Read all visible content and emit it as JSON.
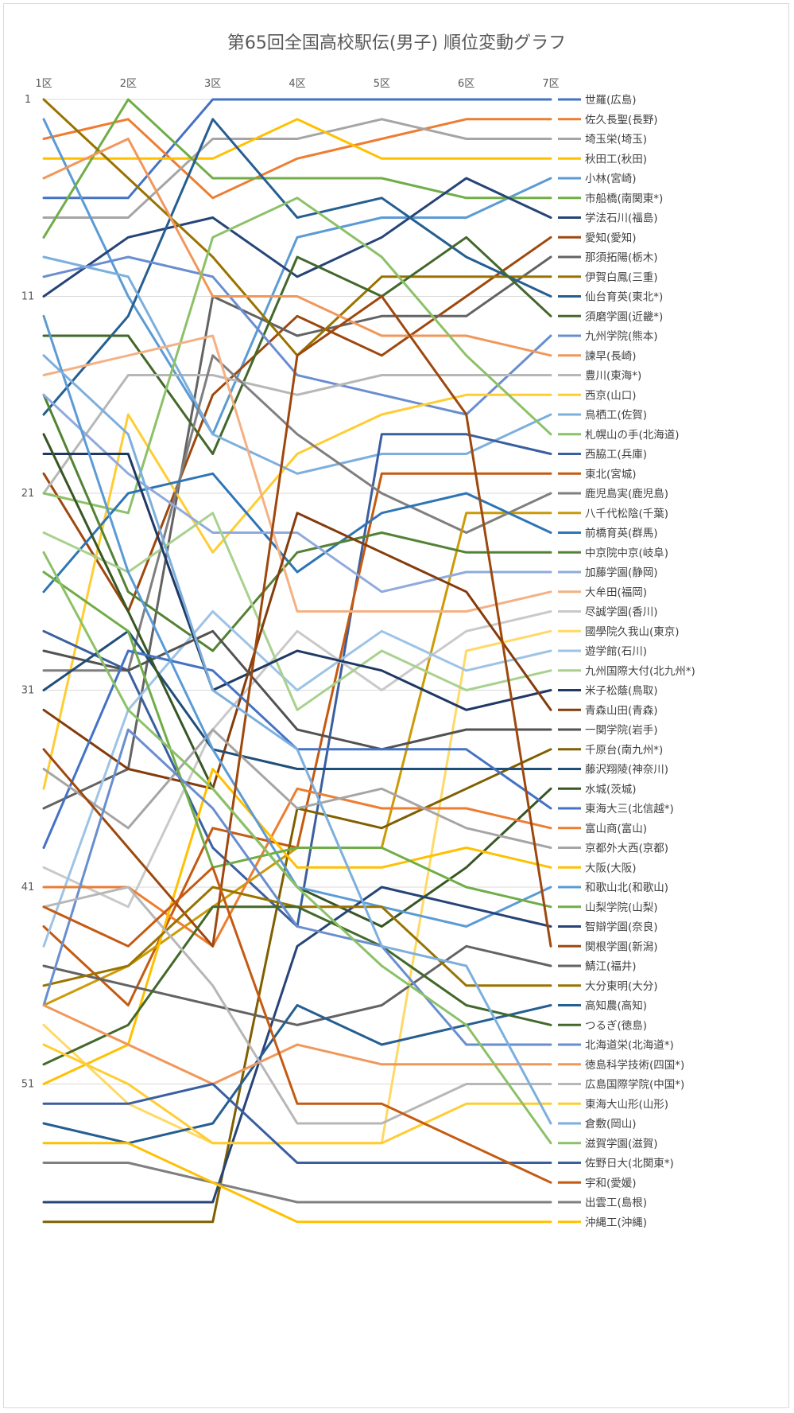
{
  "chart_data": {
    "type": "line",
    "title": "第65回全国高校駅伝(男子) 順位変動グラフ",
    "x_categories": [
      "1区",
      "2区",
      "3区",
      "4区",
      "5区",
      "6区",
      "7区"
    ],
    "y_ticks": [
      1,
      11,
      21,
      31,
      41,
      51
    ],
    "ylim": [
      1,
      58
    ],
    "y_inverted": true,
    "grid": "horizontal",
    "legend_position": "right",
    "series": [
      {
        "name": "世羅(広島)",
        "color": "#4472c4",
        "values": [
          6,
          6,
          1,
          1,
          1,
          1,
          1
        ]
      },
      {
        "name": "佐久長聖(長野)",
        "color": "#ed7d31",
        "values": [
          3,
          2,
          6,
          4,
          3,
          2,
          2
        ]
      },
      {
        "name": "埼玉栄(埼玉)",
        "color": "#a5a5a5",
        "values": [
          7,
          7,
          3,
          3,
          2,
          3,
          3
        ]
      },
      {
        "name": "秋田工(秋田)",
        "color": "#ffc000",
        "values": [
          4,
          4,
          4,
          2,
          4,
          4,
          4
        ]
      },
      {
        "name": "小林(宮崎)",
        "color": "#5b9bd5",
        "values": [
          2,
          11,
          18,
          8,
          7,
          7,
          5
        ]
      },
      {
        "name": "市船橋(南関東*)",
        "color": "#70ad47",
        "values": [
          8,
          1,
          5,
          5,
          5,
          6,
          6
        ]
      },
      {
        "name": "学法石川(福島)",
        "color": "#264478",
        "values": [
          11,
          8,
          7,
          10,
          8,
          5,
          7
        ]
      },
      {
        "name": "愛知(愛知)",
        "color": "#9e480e",
        "values": [
          20,
          27,
          16,
          12,
          14,
          11,
          8
        ]
      },
      {
        "name": "那須拓陽(栃木)",
        "color": "#636363",
        "values": [
          37,
          35,
          11,
          13,
          12,
          12,
          9
        ]
      },
      {
        "name": "伊賀白鳳(三重)",
        "color": "#997300",
        "values": [
          1,
          5,
          9,
          14,
          10,
          10,
          10
        ]
      },
      {
        "name": "仙台育英(東北*)",
        "color": "#255e91",
        "values": [
          17,
          12,
          2,
          7,
          6,
          9,
          11
        ]
      },
      {
        "name": "須磨学園(近畿*)",
        "color": "#43682b",
        "values": [
          13,
          13,
          19,
          9,
          11,
          8,
          12
        ]
      },
      {
        "name": "九州学院(熊本)",
        "color": "#698ed0",
        "values": [
          10,
          9,
          10,
          15,
          16,
          17,
          13
        ]
      },
      {
        "name": "諫早(長崎)",
        "color": "#f1975a",
        "values": [
          5,
          3,
          11,
          11,
          13,
          13,
          14
        ]
      },
      {
        "name": "豊川(東海*)",
        "color": "#b7b7b7",
        "values": [
          21,
          15,
          15,
          16,
          15,
          15,
          15
        ]
      },
      {
        "name": "西京(山口)",
        "color": "#ffcd33",
        "values": [
          36,
          17,
          24,
          19,
          17,
          16,
          16
        ]
      },
      {
        "name": "鳥栖工(佐賀)",
        "color": "#7cafdd",
        "values": [
          9,
          10,
          18,
          20,
          19,
          19,
          17
        ]
      },
      {
        "name": "札幌山の手(北海道)",
        "color": "#8cc168",
        "values": [
          21,
          22,
          8,
          6,
          9,
          14,
          18
        ]
      },
      {
        "name": "西脇工(兵庫)",
        "color": "#3a5fa0",
        "values": [
          28,
          30,
          39,
          43,
          18,
          18,
          19
        ]
      },
      {
        "name": "東北(宮城)",
        "color": "#c55a11",
        "values": [
          43,
          47,
          38,
          39,
          20,
          20,
          20
        ]
      },
      {
        "name": "鹿児島実(鹿児島)",
        "color": "#7f7f7f",
        "values": [
          30,
          30,
          14,
          18,
          21,
          23,
          21
        ]
      },
      {
        "name": "八千代松陰(千葉)",
        "color": "#cc9a06",
        "values": [
          47,
          45,
          42,
          39,
          39,
          22,
          22
        ]
      },
      {
        "name": "前橋育英(群馬)",
        "color": "#2e75b6",
        "values": [
          26,
          21,
          20,
          25,
          22,
          21,
          23
        ]
      },
      {
        "name": "中京院中京(岐阜)",
        "color": "#548235",
        "values": [
          16,
          26,
          29,
          24,
          23,
          24,
          24
        ]
      },
      {
        "name": "加藤学園(静岡)",
        "color": "#8faadc",
        "values": [
          16,
          20,
          23,
          23,
          26,
          25,
          25
        ]
      },
      {
        "name": "大牟田(福岡)",
        "color": "#f4b183",
        "values": [
          15,
          14,
          13,
          27,
          27,
          27,
          26
        ]
      },
      {
        "name": "尽誠学園(香川)",
        "color": "#c9c9c9",
        "values": [
          40,
          42,
          33,
          28,
          31,
          28,
          27
        ]
      },
      {
        "name": "國學院久我山(東京)",
        "color": "#ffd966",
        "values": [
          48,
          52,
          54,
          54,
          54,
          29,
          28
        ]
      },
      {
        "name": "遊学館(石川)",
        "color": "#9dc3e6",
        "values": [
          44,
          32,
          27,
          31,
          28,
          30,
          29
        ]
      },
      {
        "name": "九州国際大付(北九州*)",
        "color": "#a9d18e",
        "values": [
          23,
          25,
          22,
          32,
          29,
          31,
          30
        ]
      },
      {
        "name": "米子松蔭(鳥取)",
        "color": "#1f3864",
        "values": [
          19,
          19,
          31,
          29,
          30,
          32,
          31
        ]
      },
      {
        "name": "青森山田(青森)",
        "color": "#843c0c",
        "values": [
          32,
          35,
          36,
          22,
          24,
          26,
          32
        ]
      },
      {
        "name": "一関学院(岩手)",
        "color": "#525252",
        "values": [
          29,
          30,
          28,
          33,
          34,
          33,
          33
        ]
      },
      {
        "name": "千原台(南九州*)",
        "color": "#7f6000",
        "values": [
          58,
          58,
          58,
          37,
          38,
          36,
          34
        ]
      },
      {
        "name": "藤沢翔陵(神奈川)",
        "color": "#1f4e79",
        "values": [
          31,
          28,
          34,
          35,
          35,
          35,
          35
        ]
      },
      {
        "name": "水城(茨城)",
        "color": "#375623",
        "values": [
          18,
          27,
          36,
          41,
          43,
          40,
          36
        ]
      },
      {
        "name": "東海大三(北信越*)",
        "color": "#4472c4",
        "values": [
          39,
          29,
          30,
          34,
          34,
          34,
          37
        ]
      },
      {
        "name": "富山商(富山)",
        "color": "#ed7d31",
        "values": [
          41,
          41,
          44,
          36,
          37,
          37,
          38
        ]
      },
      {
        "name": "京都外大西(京都)",
        "color": "#a5a5a5",
        "values": [
          35,
          38,
          33,
          37,
          36,
          38,
          39
        ]
      },
      {
        "name": "大阪(大阪)",
        "color": "#ffc000",
        "values": [
          51,
          49,
          35,
          40,
          40,
          39,
          40
        ]
      },
      {
        "name": "和歌山北(和歌山)",
        "color": "#5b9bd5",
        "values": [
          12,
          25,
          34,
          41,
          42,
          43,
          41
        ]
      },
      {
        "name": "山梨学院(山梨)",
        "color": "#70ad47",
        "values": [
          25,
          28,
          40,
          39,
          39,
          41,
          42
        ]
      },
      {
        "name": "智辯学園(奈良)",
        "color": "#264478",
        "values": [
          57,
          57,
          57,
          44,
          41,
          42,
          43
        ]
      },
      {
        "name": "関根学園(新潟)",
        "color": "#9e480e",
        "values": [
          34,
          39,
          44,
          14,
          11,
          17,
          44
        ]
      },
      {
        "name": "鯖江(福井)",
        "color": "#636363",
        "values": [
          45,
          46,
          47,
          48,
          47,
          44,
          45
        ]
      },
      {
        "name": "大分東明(大分)",
        "color": "#997300",
        "values": [
          46,
          45,
          41,
          42,
          42,
          46,
          46
        ]
      },
      {
        "name": "高知農(高知)",
        "color": "#255e91",
        "values": [
          53,
          54,
          53,
          47,
          49,
          48,
          47
        ]
      },
      {
        "name": "つるぎ(徳島)",
        "color": "#43682b",
        "values": [
          50,
          48,
          42,
          42,
          44,
          47,
          48
        ]
      },
      {
        "name": "北海道栄(北海道*)",
        "color": "#698ed0",
        "values": [
          47,
          33,
          37,
          43,
          44,
          49,
          49
        ]
      },
      {
        "name": "徳島科学技術(四国*)",
        "color": "#f1975a",
        "values": [
          47,
          49,
          51,
          49,
          50,
          50,
          50
        ]
      },
      {
        "name": "広島国際学院(中国*)",
        "color": "#b7b7b7",
        "values": [
          42,
          41,
          46,
          53,
          53,
          51,
          51
        ]
      },
      {
        "name": "東海大山形(山形)",
        "color": "#ffcd33",
        "values": [
          49,
          51,
          54,
          54,
          54,
          52,
          52
        ]
      },
      {
        "name": "倉敷(岡山)",
        "color": "#7cafdd",
        "values": [
          14,
          18,
          31,
          34,
          44,
          45,
          53
        ]
      },
      {
        "name": "滋賀学園(滋賀)",
        "color": "#8cc168",
        "values": [
          24,
          32,
          36,
          41,
          45,
          48,
          54
        ]
      },
      {
        "name": "佐野日大(北関東*)",
        "color": "#3a5fa0",
        "values": [
          52,
          52,
          51,
          55,
          55,
          55,
          55
        ]
      },
      {
        "name": "宇和(愛媛)",
        "color": "#c55a11",
        "values": [
          42,
          44,
          40,
          52,
          52,
          54,
          56
        ]
      },
      {
        "name": "出雲工(島根)",
        "color": "#7f7f7f",
        "values": [
          55,
          55,
          56,
          57,
          57,
          57,
          57
        ]
      },
      {
        "name": "沖縄工(沖縄)",
        "color": "#ffc000",
        "values": [
          54,
          54,
          56,
          58,
          58,
          58,
          58
        ]
      }
    ]
  }
}
